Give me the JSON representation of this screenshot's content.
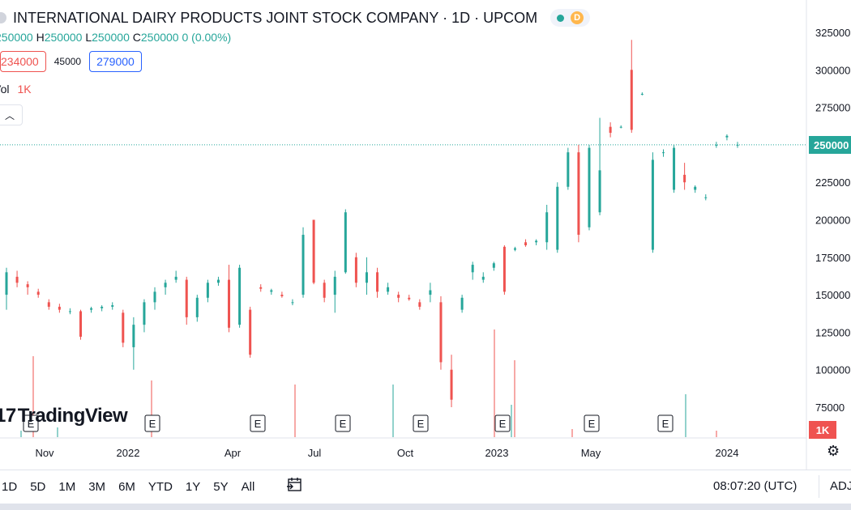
{
  "header": {
    "title": "INTERNATIONAL DAIRY PRODUCTS JOINT STOCK COMPANY · 1D · UPCOM",
    "status_badge": "D"
  },
  "ohlc": {
    "o_value": "250000",
    "h_label": "H",
    "h_value": "250000",
    "l_label": "L",
    "l_value": "250000",
    "c_label": "C",
    "c_value": "250000",
    "change": "0 (0.00%)"
  },
  "trade": {
    "sell": "234000",
    "spread": "45000",
    "buy": "279000"
  },
  "volume_legend": {
    "label": "Vol",
    "value": "1K"
  },
  "price_tag": "250000",
  "volume_tag": "1K",
  "watermark": "TradingView",
  "timeframes": [
    "1D",
    "5D",
    "1M",
    "3M",
    "6M",
    "YTD",
    "1Y",
    "5Y",
    "All"
  ],
  "clock": "08:07:20 (UTC)",
  "adj_label": "ADJ",
  "colors": {
    "up": "#26a69a",
    "down": "#ef5350",
    "accent": "#2962ff"
  },
  "chart_data": {
    "type": "candlestick",
    "title": "INTERNATIONAL DAIRY PRODUCTS JOINT STOCK COMPANY · 1D · UPCOM",
    "x_ticks": [
      "Nov",
      "2022",
      "Apr",
      "Jul",
      "Oct",
      "2023",
      "May",
      "2024"
    ],
    "y_ticks": [
      325000,
      300000,
      275000,
      250000,
      225000,
      200000,
      175000,
      150000,
      125000,
      100000,
      75000
    ],
    "ylim": [
      62000,
      330000
    ],
    "last_price": 250000,
    "earnings_markers": 10,
    "earnings_label": "E",
    "volume_last": "1K",
    "candles": [
      {
        "o": 150000,
        "h": 168000,
        "l": 140000,
        "c": 165000
      },
      {
        "o": 162000,
        "h": 166000,
        "l": 155000,
        "c": 158000
      },
      {
        "o": 157000,
        "h": 159000,
        "l": 150000,
        "c": 155000
      },
      {
        "o": 152000,
        "h": 154000,
        "l": 148000,
        "c": 150000
      },
      {
        "o": 145000,
        "h": 147000,
        "l": 140000,
        "c": 142000
      },
      {
        "o": 142000,
        "h": 144000,
        "l": 138000,
        "c": 140000
      },
      {
        "o": 139000,
        "h": 141000,
        "l": 137000,
        "c": 139000
      },
      {
        "o": 139000,
        "h": 140000,
        "l": 120000,
        "c": 122000
      },
      {
        "o": 140000,
        "h": 142000,
        "l": 138000,
        "c": 141000
      },
      {
        "o": 141000,
        "h": 143000,
        "l": 139000,
        "c": 142000
      },
      {
        "o": 142000,
        "h": 145000,
        "l": 140000,
        "c": 143000
      },
      {
        "o": 138000,
        "h": 140000,
        "l": 115000,
        "c": 118000
      },
      {
        "o": 115000,
        "h": 135000,
        "l": 100000,
        "c": 130000
      },
      {
        "o": 130000,
        "h": 147000,
        "l": 125000,
        "c": 145000
      },
      {
        "o": 145000,
        "h": 155000,
        "l": 140000,
        "c": 152000
      },
      {
        "o": 155000,
        "h": 160000,
        "l": 150000,
        "c": 158000
      },
      {
        "o": 160000,
        "h": 166000,
        "l": 158000,
        "c": 162000
      },
      {
        "o": 160000,
        "h": 162000,
        "l": 130000,
        "c": 135000
      },
      {
        "o": 135000,
        "h": 150000,
        "l": 132000,
        "c": 148000
      },
      {
        "o": 148000,
        "h": 160000,
        "l": 145000,
        "c": 158000
      },
      {
        "o": 158000,
        "h": 162000,
        "l": 156000,
        "c": 160000
      },
      {
        "o": 160000,
        "h": 170000,
        "l": 125000,
        "c": 128000
      },
      {
        "o": 130000,
        "h": 170000,
        "l": 128000,
        "c": 168000
      },
      {
        "o": 140000,
        "h": 142000,
        "l": 108000,
        "c": 110000
      },
      {
        "o": 155000,
        "h": 157000,
        "l": 152000,
        "c": 154000
      },
      {
        "o": 152000,
        "h": 154000,
        "l": 150000,
        "c": 153000
      },
      {
        "o": 150000,
        "h": 152000,
        "l": 148000,
        "c": 149000
      },
      {
        "o": 145000,
        "h": 147000,
        "l": 143000,
        "c": 145000
      },
      {
        "o": 150000,
        "h": 195000,
        "l": 148000,
        "c": 190000
      },
      {
        "o": 200000,
        "h": 200000,
        "l": 157000,
        "c": 158000
      },
      {
        "o": 158000,
        "h": 160000,
        "l": 145000,
        "c": 148000
      },
      {
        "o": 150000,
        "h": 166000,
        "l": 138000,
        "c": 162000
      },
      {
        "o": 165000,
        "h": 207000,
        "l": 164000,
        "c": 205000
      },
      {
        "o": 175000,
        "h": 178000,
        "l": 155000,
        "c": 158000
      },
      {
        "o": 158000,
        "h": 175000,
        "l": 150000,
        "c": 165000
      },
      {
        "o": 165000,
        "h": 168000,
        "l": 148000,
        "c": 152000
      },
      {
        "o": 152000,
        "h": 158000,
        "l": 150000,
        "c": 155000
      },
      {
        "o": 150000,
        "h": 152000,
        "l": 145000,
        "c": 148000
      },
      {
        "o": 148000,
        "h": 150000,
        "l": 146000,
        "c": 147000
      },
      {
        "o": 145000,
        "h": 147000,
        "l": 140000,
        "c": 142000
      },
      {
        "o": 150000,
        "h": 158000,
        "l": 145000,
        "c": 153000
      },
      {
        "o": 145000,
        "h": 149000,
        "l": 100000,
        "c": 105000
      },
      {
        "o": 100000,
        "h": 110000,
        "l": 75000,
        "c": 80000
      },
      {
        "o": 140000,
        "h": 150000,
        "l": 138000,
        "c": 148000
      },
      {
        "o": 165000,
        "h": 172000,
        "l": 160000,
        "c": 170000
      },
      {
        "o": 160000,
        "h": 165000,
        "l": 158000,
        "c": 162000
      },
      {
        "o": 168000,
        "h": 172000,
        "l": 166000,
        "c": 171000
      },
      {
        "o": 182000,
        "h": 183000,
        "l": 150000,
        "c": 152000
      },
      {
        "o": 180000,
        "h": 182000,
        "l": 179000,
        "c": 181000
      },
      {
        "o": 185000,
        "h": 187000,
        "l": 182000,
        "c": 183000
      },
      {
        "o": 185000,
        "h": 187000,
        "l": 183000,
        "c": 186000
      },
      {
        "o": 185000,
        "h": 210000,
        "l": 180000,
        "c": 205000
      },
      {
        "o": 180000,
        "h": 225000,
        "l": 178000,
        "c": 222000
      },
      {
        "o": 222000,
        "h": 248000,
        "l": 220000,
        "c": 245000
      },
      {
        "o": 245000,
        "h": 250000,
        "l": 185000,
        "c": 190000
      },
      {
        "o": 195000,
        "h": 250000,
        "l": 193000,
        "c": 248000
      },
      {
        "o": 205000,
        "h": 268000,
        "l": 203000,
        "c": 233000
      },
      {
        "o": 262000,
        "h": 265000,
        "l": 255000,
        "c": 258000
      },
      {
        "o": 262000,
        "h": 263000,
        "l": 261000,
        "c": 262000
      },
      {
        "o": 300000,
        "h": 320000,
        "l": 258000,
        "c": 260000
      },
      {
        "o": 284000,
        "h": 285000,
        "l": 283000,
        "c": 284000
      },
      {
        "o": 180000,
        "h": 245000,
        "l": 178000,
        "c": 240000
      },
      {
        "o": 245000,
        "h": 247000,
        "l": 242000,
        "c": 245000
      },
      {
        "o": 220000,
        "h": 250000,
        "l": 218000,
        "c": 248000
      },
      {
        "o": 230000,
        "h": 238000,
        "l": 220000,
        "c": 225000
      },
      {
        "o": 220000,
        "h": 223000,
        "l": 218000,
        "c": 222000
      },
      {
        "o": 215000,
        "h": 217000,
        "l": 213000,
        "c": 215000
      },
      {
        "o": 250000,
        "h": 252000,
        "l": 248000,
        "c": 250000
      },
      {
        "o": 255000,
        "h": 257000,
        "l": 253000,
        "c": 256000
      },
      {
        "o": 250000,
        "h": 252000,
        "l": 248000,
        "c": 250000
      }
    ]
  }
}
